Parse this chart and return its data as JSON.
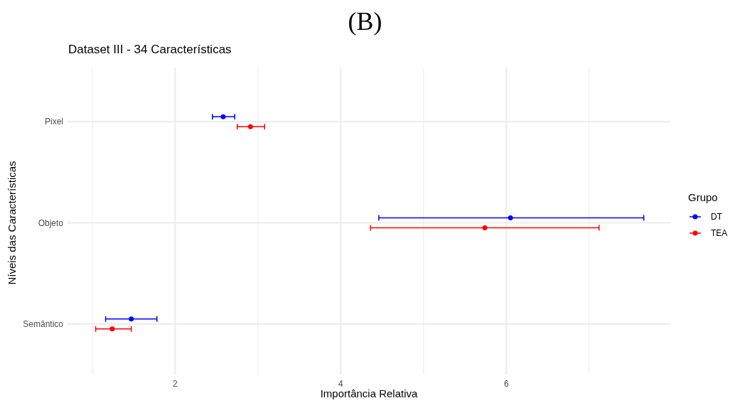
{
  "chart_data": {
    "type": "scatter",
    "orientation": "horizontal",
    "title": "(B)",
    "subtitle": "Dataset III - 34 Características",
    "xlabel": "Importância Relativa",
    "ylabel": "Níveis das Características",
    "legend_title": "Grupo",
    "categories": [
      "Pixel",
      "Objeto",
      "Semântico"
    ],
    "series": [
      {
        "name": "DT",
        "color": "#0000ff",
        "values": [
          2.58,
          6.05,
          1.47
        ],
        "errors": [
          [
            2.45,
            2.72
          ],
          [
            4.46,
            7.66
          ],
          [
            1.16,
            1.78
          ]
        ]
      },
      {
        "name": "TEA",
        "color": "#ff0000",
        "values": [
          2.91,
          5.74,
          1.24
        ],
        "errors": [
          [
            2.75,
            3.08
          ],
          [
            4.36,
            7.12
          ],
          [
            1.04,
            1.47
          ]
        ]
      }
    ],
    "xlim": [
      0.7,
      7.98
    ],
    "xticks": [
      {
        "value": 1,
        "label": null
      },
      2,
      {
        "value": 3,
        "label": null
      },
      4,
      {
        "value": 5,
        "label": null
      },
      6,
      {
        "value": 7,
        "label": null
      }
    ],
    "grid": true,
    "legend": "right",
    "marker": "circle"
  }
}
